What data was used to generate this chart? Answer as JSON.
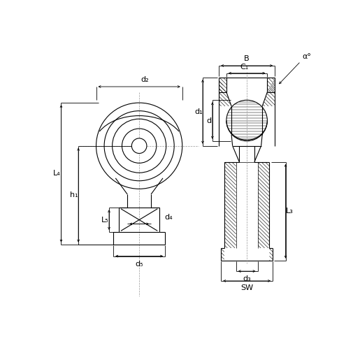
{
  "bg_color": "#ffffff",
  "line_color": "#000000",
  "labels": {
    "d2": "d₂",
    "d4": "d₄",
    "d5": "d₅",
    "L4": "L₄",
    "h1": "h₁",
    "L5": "L₅",
    "B": "B",
    "C1": "C₁",
    "alpha": "α°",
    "d1": "d₁",
    "d": "d",
    "L3": "L₃",
    "d3": "d₃",
    "SW": "SW"
  },
  "fig_width": 5.05,
  "fig_height": 4.88,
  "dpi": 100
}
